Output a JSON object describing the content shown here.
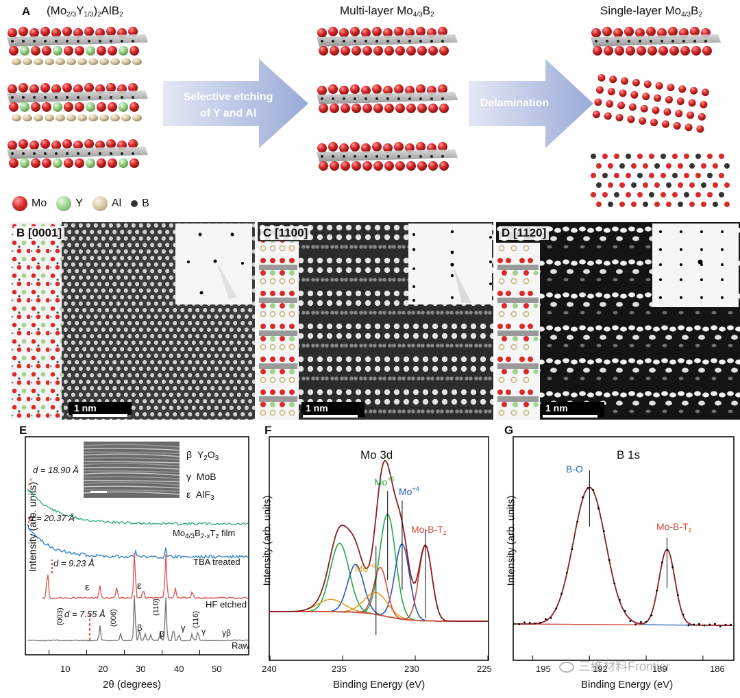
{
  "panel_a": {
    "label": "A",
    "title_left": {
      "pre": "(Mo",
      "s1": "2/3",
      "m1": "Y",
      "s2": "1/3",
      "m2": ")",
      "s3": "2",
      "post": "AlB",
      "s4": "2"
    },
    "title_mid": {
      "pre": "Multi-layer Mo",
      "s1": "4/3",
      "m1": "B",
      "s2": "2"
    },
    "title_right": {
      "pre": "Single-layer Mo",
      "s1": "4/3",
      "m1": "B",
      "s2": "2"
    },
    "arrow1": {
      "line1": "Selective etching",
      "line2": "of Y and Al"
    },
    "arrow2": {
      "line1": "Delamination"
    },
    "legend": [
      {
        "label": "Mo",
        "color": "#d42a2a"
      },
      {
        "label": "Y",
        "color": "#9fd48e"
      },
      {
        "label": "Al",
        "color": "#d9c9a6"
      },
      {
        "label": "B",
        "color": "#333333"
      }
    ]
  },
  "panel_b": {
    "label": "B",
    "zone": "[0001]",
    "scalebar": "1 nm"
  },
  "panel_c": {
    "label": "C",
    "zone_pre": "[1",
    "zone_bar": "1",
    "zone_post": "00]",
    "scalebar": "1 nm"
  },
  "panel_d": {
    "label": "D",
    "zone_pre": "[11",
    "zone_bar": "2",
    "zone_post": "0]",
    "scalebar": "1 nm"
  },
  "panel_e": {
    "label": "E",
    "ylabel": "Intensity (arb. units)",
    "xlabel": "2θ (degrees)",
    "xticks": [
      "10",
      "20",
      "30",
      "40",
      "50"
    ],
    "legend": [
      {
        "sym": "β",
        "name": "Y",
        "sub1": "2",
        "name2": "O",
        "sub2": "3"
      },
      {
        "sym": "γ",
        "name": "MoB"
      },
      {
        "sym": "ε",
        "name": "AlF",
        "sub1": "3"
      }
    ],
    "d1": "d = 18.90 Å",
    "d2": "d = 20.37 Å",
    "d3": "d = 9.23 Å",
    "d4": "d = 7.55 Å",
    "traces": {
      "film": {
        "pre": "Mo",
        "s1": "4/3",
        "m1": "B",
        "s2": "2-x",
        "m2": "T",
        "s3": "z",
        "post": " film",
        "color": "#2aa97a"
      },
      "tba": {
        "label": "TBA treated",
        "color": "#2a7fc0"
      },
      "hf": {
        "label": "HF etched",
        "color": "#e05050"
      },
      "raw": {
        "label": "Raw",
        "color": "#707070"
      }
    },
    "peak_labels": {
      "p003": "(003)",
      "p006": "(006)",
      "p110": "(110)",
      "p116": "(116)",
      "beta": "β",
      "gamma": "γ",
      "eps": "ε",
      "gb": "γβ"
    }
  },
  "panel_f": {
    "label": "F",
    "title": "Mo 3d",
    "ylabel": "Intensity (arb. units)",
    "xlabel": "Binding Energy (eV)",
    "xticks": [
      "240",
      "235",
      "230",
      "225"
    ],
    "comp": {
      "mo5": {
        "pre": "Mo",
        "sup": "+5",
        "color": "#22a845"
      },
      "mo4": {
        "pre": "Mo",
        "sup": "+4",
        "color": "#2255b8"
      },
      "mo6": {
        "pre": "Mo",
        "sup": "+6",
        "color": "#e0a020"
      },
      "mobt": {
        "pre": "Mo-B-T",
        "sub": "z",
        "color": "#d24a3a"
      }
    }
  },
  "panel_g": {
    "label": "G",
    "title": "B 1s",
    "ylabel": "Intensity (arb. units)",
    "xlabel": "Binding Energy (eV)",
    "xticks": [
      "195",
      "192",
      "189",
      "186"
    ],
    "bo": {
      "label": "B-O",
      "color": "#2a6db8"
    },
    "mobt": {
      "pre": "Mo-B-T",
      "sub": "z",
      "color": "#d24a3a"
    },
    "watermark": "三维材料Frontier"
  }
}
